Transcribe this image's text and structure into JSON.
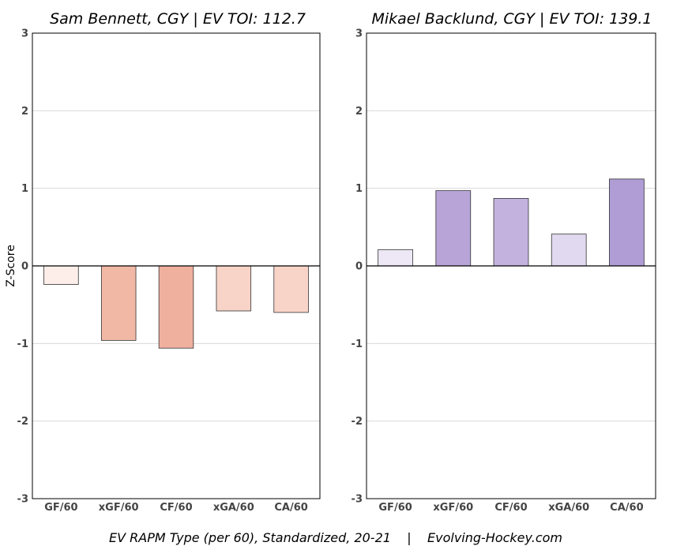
{
  "footer": "EV RAPM Type (per 60), Standardized, 20-21    |    Evolving-Hockey.com",
  "chart_data": [
    {
      "type": "bar",
      "title": "Sam Bennett, CGY  |  EV TOI: 112.7",
      "ylabel": "Z-Score",
      "xlabel": "",
      "categories": [
        "GF/60",
        "xGF/60",
        "CF/60",
        "xGA/60",
        "CA/60"
      ],
      "values": [
        -0.24,
        -0.96,
        -1.06,
        -0.58,
        -0.6
      ],
      "colors": [
        "#fdeee9",
        "#f2b8a6",
        "#f0b09e",
        "#f8d3c7",
        "#f8d3c7"
      ],
      "ylim": [
        -3,
        3
      ],
      "yticks": [
        "-3",
        "-2",
        "-1",
        "0",
        "1",
        "2",
        "3"
      ],
      "grid": true
    },
    {
      "type": "bar",
      "title": "Mikael Backlund, CGY  |  EV TOI: 139.1",
      "ylabel": "",
      "xlabel": "",
      "categories": [
        "GF/60",
        "xGF/60",
        "CF/60",
        "xGA/60",
        "CA/60"
      ],
      "values": [
        0.21,
        0.97,
        0.87,
        0.41,
        1.12
      ],
      "colors": [
        "#eee8f6",
        "#b8a4d7",
        "#c3b2de",
        "#e1d9ef",
        "#b09dd5"
      ],
      "ylim": [
        -3,
        3
      ],
      "yticks": [
        "-3",
        "-2",
        "-1",
        "0",
        "1",
        "2",
        "3"
      ],
      "grid": true
    }
  ]
}
